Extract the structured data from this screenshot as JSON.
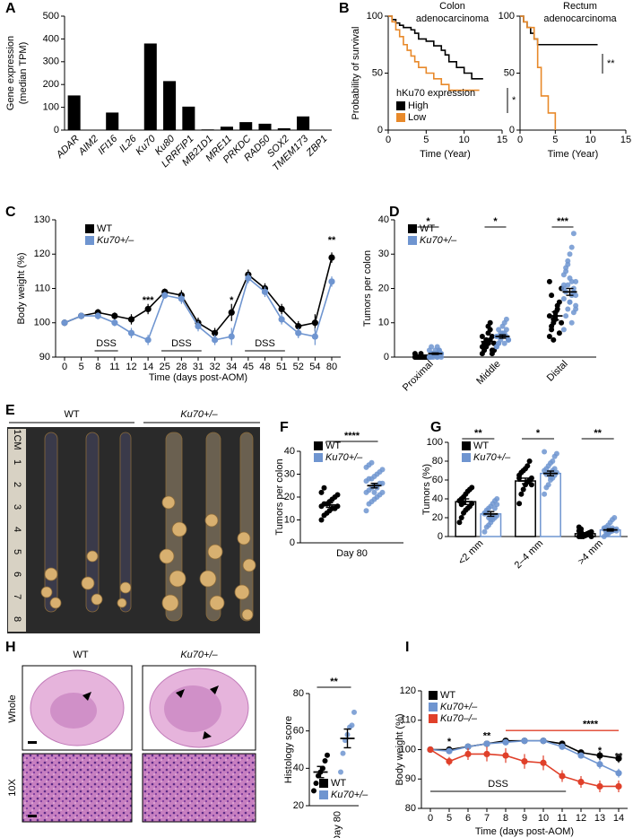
{
  "chart_data": [
    {
      "type": "bar",
      "label": "A",
      "ylabel": [
        "Gene expression",
        "(median TPM)"
      ],
      "categories": [
        "ADAR",
        "AIM2",
        "IFI16",
        "IL26",
        "Ku70",
        "Ku80",
        "LRRFIP1",
        "MB21D1",
        "MRE11",
        "PRKDC",
        "RAD50",
        "SOX2",
        "TMEM173",
        "ZBP1"
      ],
      "values": [
        152,
        0,
        77,
        0,
        380,
        215,
        103,
        3,
        15,
        35,
        28,
        8,
        60,
        0
      ],
      "color": "#000000",
      "ylim": [
        0,
        500
      ],
      "yticks": [
        0,
        100,
        200,
        300,
        400,
        500
      ]
    },
    {
      "type": "step",
      "label": "B",
      "title": [
        "Colon",
        "adenocarcinoma"
      ],
      "ylabel": "Probability of survival",
      "xlabel": "Time (Year)",
      "legend": true,
      "legend_title": "hKu70 expression",
      "series": [
        {
          "name": "High",
          "color": "#000000",
          "x": [
            0,
            0.5,
            1,
            1.5,
            2,
            3,
            3.5,
            4,
            5,
            6,
            7,
            7.5,
            8,
            9,
            10,
            11,
            12.5
          ],
          "values": [
            100,
            97,
            94,
            92,
            90,
            88,
            85,
            80,
            78,
            74,
            70,
            66,
            60,
            55,
            50,
            45,
            45
          ]
        },
        {
          "name": "Low",
          "color": "#e8892a",
          "x": [
            0,
            0.5,
            1,
            1.5,
            2,
            2.5,
            3,
            3.5,
            4,
            5,
            6,
            7,
            8,
            12
          ],
          "values": [
            100,
            95,
            88,
            82,
            75,
            70,
            65,
            60,
            55,
            50,
            45,
            40,
            35,
            35
          ]
        }
      ],
      "xlim": [
        0,
        15
      ],
      "xticks": [
        0,
        5,
        10,
        15
      ],
      "ylim": [
        0,
        100
      ],
      "yticks": [
        0,
        50,
        100
      ],
      "significance": "*"
    },
    {
      "type": "step",
      "title": [
        "Rectum",
        "adenocarcinoma"
      ],
      "xlabel": "Time (Year)",
      "legend": false,
      "series": [
        {
          "name": "High",
          "color": "#000000",
          "x": [
            0,
            0.5,
            1,
            1.5,
            2,
            2.5,
            11
          ],
          "values": [
            100,
            95,
            90,
            85,
            80,
            75,
            75
          ]
        },
        {
          "name": "Low",
          "color": "#e8892a",
          "x": [
            0,
            0.5,
            1,
            2,
            2.5,
            3,
            4,
            5
          ],
          "values": [
            100,
            95,
            90,
            80,
            55,
            30,
            15,
            0
          ]
        }
      ],
      "xlim": [
        0,
        15
      ],
      "xticks": [
        0,
        5,
        10,
        15
      ],
      "ylim": [
        0,
        100
      ],
      "yticks": [
        0,
        50,
        100
      ],
      "significance": "**"
    },
    {
      "type": "line",
      "label": "C",
      "ylabel": "Body weight (%)",
      "xlabel": "Time (days post-AOM)",
      "legend": true,
      "categories": [
        0,
        5,
        8,
        11,
        12,
        14,
        25,
        28,
        31,
        32,
        34,
        45,
        48,
        51,
        52,
        54,
        80
      ],
      "series": [
        {
          "name": "WT",
          "color": "#000000",
          "values": [
            100,
            102,
            103,
            102,
            101,
            104,
            109,
            108,
            100,
            97,
            103,
            114,
            110,
            104,
            99,
            100,
            119
          ],
          "errors": [
            0.3,
            0.8,
            1,
            1,
            1.5,
            1.5,
            1,
            1.5,
            1.5,
            1.5,
            2.5,
            1.5,
            1.5,
            1.5,
            1.5,
            2.5,
            1.5
          ]
        },
        {
          "name": "Ku70+/–",
          "color": "#6f95d0",
          "values": [
            100,
            102,
            102,
            100,
            97,
            95,
            108,
            107,
            99,
            95,
            96,
            113,
            109,
            101,
            97,
            96,
            112
          ],
          "errors": [
            0.3,
            0.8,
            1,
            1,
            1.5,
            1.5,
            1,
            1.5,
            1.5,
            1.5,
            2.5,
            1.5,
            1.5,
            1.5,
            1.5,
            2.5,
            1.5
          ]
        }
      ],
      "ylim": [
        90,
        130
      ],
      "yticks": [
        90,
        100,
        110,
        120,
        130
      ],
      "annotations": [
        {
          "text": "***",
          "color": "#000000"
        },
        {
          "text": "*",
          "color": "#000000"
        },
        {
          "text": "**",
          "color": "#000000"
        }
      ],
      "period_labels": [
        "DSS",
        "DSS",
        "DSS"
      ]
    },
    {
      "type": "strip",
      "label": "D",
      "ylabel": "Tumors per colon",
      "legend": true,
      "bars": false,
      "categories": [
        "Proximal",
        "Middle",
        "Distal"
      ],
      "series": [
        {
          "name": "WT",
          "color": "#000000",
          "values": [
            [
              0,
              0,
              0,
              0,
              0,
              0,
              0,
              0,
              0,
              0,
              1,
              0,
              0,
              0,
              1,
              0,
              0,
              0
            ],
            [
              1,
              2,
              3,
              4,
              5,
              6,
              2,
              3,
              4,
              5,
              7,
              8,
              1,
              4,
              6,
              3,
              5,
              9,
              10,
              2
            ],
            [
              6,
              8,
              10,
              12,
              14,
              16,
              20,
              22,
              9,
              11,
              13,
              15,
              7,
              10,
              12,
              18,
              5,
              11
            ]
          ],
          "means": [
            0.1,
            4.5,
            12
          ],
          "errors": [
            0.1,
            0.6,
            1.2
          ]
        },
        {
          "name": "Ku70+/–",
          "color": "#6f95d0",
          "values": [
            [
              0,
              0,
              1,
              1,
              0,
              2,
              1,
              0,
              3,
              1,
              2,
              0,
              1,
              0,
              2,
              1,
              0,
              1,
              3,
              2,
              1,
              0,
              1
            ],
            [
              3,
              4,
              5,
              6,
              7,
              8,
              5,
              6,
              4,
              7,
              9,
              10,
              6,
              5,
              3,
              8,
              6,
              7,
              4,
              11,
              5,
              6
            ],
            [
              8,
              12,
              14,
              16,
              18,
              20,
              22,
              24,
              26,
              28,
              30,
              32,
              36,
              15,
              17,
              19,
              21,
              23,
              10,
              13,
              18,
              20,
              25,
              27,
              16,
              22,
              19,
              14,
              21
            ]
          ],
          "means": [
            1,
            6,
            19
          ],
          "errors": [
            0.2,
            0.5,
            1
          ]
        }
      ],
      "ylim": [
        0,
        40
      ],
      "yticks": [
        0,
        10,
        20,
        30,
        40
      ],
      "significance": [
        "*",
        "*",
        "***"
      ]
    },
    {
      "type": "strip",
      "label": "F",
      "ylabel": "Tumors per colon",
      "legend": true,
      "bars": false,
      "categories": [
        "Day 80"
      ],
      "series": [
        {
          "name": "WT",
          "color": "#000000",
          "values": [
            [
              10,
              12,
              13,
              14,
              15,
              15,
              16,
              16,
              17,
              17,
              18,
              19,
              20,
              21,
              22,
              24
            ]
          ],
          "means": [
            16.5
          ],
          "errors": [
            1
          ]
        },
        {
          "name": "Ku70+/–",
          "color": "#6f95d0",
          "values": [
            [
              14,
              17,
              18,
              19,
              20,
              21,
              22,
              22,
              23,
              24,
              25,
              25,
              26,
              26,
              27,
              28,
              28,
              29,
              30,
              31,
              32,
              33,
              34,
              35,
              22,
              24
            ]
          ],
          "means": [
            25
          ],
          "errors": [
            1
          ]
        }
      ],
      "ylim": [
        0,
        40
      ],
      "yticks": [
        0,
        10,
        20,
        30,
        40
      ],
      "significance": [
        "****"
      ]
    },
    {
      "type": "strip",
      "label": "G",
      "ylabel": "Tumors (%)",
      "legend": true,
      "bars": true,
      "categories": [
        "<2 mm",
        "2–4 mm",
        ">4 mm"
      ],
      "series": [
        {
          "name": "WT",
          "color": "#000000",
          "values": [
            [
              15,
              20,
              25,
              28,
              30,
              32,
              35,
              38,
              40,
              42,
              45,
              48,
              50,
              52,
              38,
              34,
              36
            ],
            [
              35,
              45,
              50,
              55,
              58,
              60,
              62,
              65,
              68,
              70,
              72,
              75,
              80,
              55,
              62
            ],
            [
              0,
              0,
              1,
              2,
              3,
              4,
              5,
              6,
              8,
              0,
              1,
              2,
              3,
              0,
              10,
              5,
              2
            ]
          ],
          "means": [
            37,
            59,
            3
          ],
          "errors": [
            3,
            3,
            1
          ]
        },
        {
          "name": "Ku70+/–",
          "color": "#6f95d0",
          "values": [
            [
              5,
              10,
              12,
              15,
              18,
              20,
              22,
              25,
              28,
              30,
              32,
              35,
              38,
              40,
              24,
              26,
              20,
              18,
              22,
              30,
              34
            ],
            [
              45,
              52,
              55,
              60,
              62,
              65,
              68,
              70,
              72,
              75,
              78,
              80,
              85,
              88,
              90,
              66,
              68,
              63,
              70,
              72
            ],
            [
              0,
              2,
              4,
              5,
              6,
              7,
              8,
              9,
              10,
              12,
              15,
              18,
              20,
              6,
              8,
              5,
              3,
              7,
              9
            ]
          ],
          "means": [
            24,
            67,
            7
          ],
          "errors": [
            2.5,
            2.5,
            1.2
          ]
        }
      ],
      "ylim": [
        0,
        100
      ],
      "yticks": [
        0,
        20,
        40,
        60,
        80,
        100
      ],
      "significance": [
        "**",
        "*",
        "**"
      ]
    },
    {
      "type": "strip",
      "ylabel": "Histology score",
      "legend": true,
      "bars": false,
      "categories": [
        "Day 80"
      ],
      "series": [
        {
          "name": "WT",
          "color": "#000000",
          "values": [
            [
              28,
              32,
              36,
              38,
              40,
              44,
              47
            ]
          ],
          "means": [
            38
          ],
          "errors": [
            3
          ]
        },
        {
          "name": "Ku70+/–",
          "color": "#6f95d0",
          "values": [
            [
              38,
              48,
              55,
              58,
              62,
              63,
              70
            ]
          ],
          "means": [
            56
          ],
          "errors": [
            5
          ]
        }
      ],
      "ylim": [
        20,
        80
      ],
      "yticks": [
        20,
        40,
        60,
        80
      ],
      "significance": [
        "**"
      ]
    },
    {
      "type": "line",
      "label": "I",
      "ylabel": "Body weight (%)",
      "xlabel": "Time (days post-AOM)",
      "legend": true,
      "categories": [
        0,
        5,
        6,
        7,
        8,
        9,
        10,
        11,
        12,
        13,
        14
      ],
      "series": [
        {
          "name": "WT",
          "color": "#000000",
          "values": [
            100,
            100,
            101,
            102,
            103,
            103,
            103,
            102,
            99,
            98,
            97
          ],
          "errors": [
            0.3,
            0.8,
            1,
            1,
            0.8,
            0.8,
            0.8,
            1,
            1,
            1.5,
            1.5
          ]
        },
        {
          "name": "Ku70+/–",
          "color": "#6f95d0",
          "values": [
            100,
            99.5,
            101,
            102,
            102.5,
            103,
            103,
            101,
            98,
            95,
            92
          ],
          "errors": [
            0.3,
            0.8,
            1,
            1,
            0.8,
            0.8,
            0.8,
            1,
            1,
            1.5,
            1.5
          ]
        },
        {
          "name": "Ku70–/–",
          "color": "#e0402a",
          "values": [
            100,
            96,
            98.5,
            98.5,
            98,
            96,
            95.5,
            91,
            89,
            87.5,
            87.5
          ],
          "errors": [
            0.3,
            1.5,
            2,
            2.5,
            2.5,
            2.5,
            2.5,
            2,
            2,
            2,
            2
          ]
        }
      ],
      "ylim": [
        80,
        120
      ],
      "yticks": [
        80,
        90,
        100,
        110,
        120
      ],
      "annotations": [
        {
          "text": "*",
          "color": "#e0402a"
        },
        {
          "text": "**",
          "color": "#e0402a"
        },
        {
          "text": "****",
          "color": "#e0402a"
        },
        {
          "text": "*",
          "color": "#6f95d0"
        },
        {
          "text": "**",
          "color": "#6f95d0"
        }
      ],
      "period_labels": [
        "DSS"
      ]
    }
  ],
  "panel_e": {
    "label": "E",
    "groups": [
      "WT",
      "Ku70+/–"
    ],
    "ruler": [
      "1CM",
      "1",
      "2",
      "3",
      "4",
      "5",
      "6",
      "7",
      "8"
    ]
  },
  "panel_h": {
    "label": "H",
    "columns": [
      "WT",
      "Ku70+/–"
    ],
    "rows": [
      "Whole",
      "10X"
    ]
  }
}
